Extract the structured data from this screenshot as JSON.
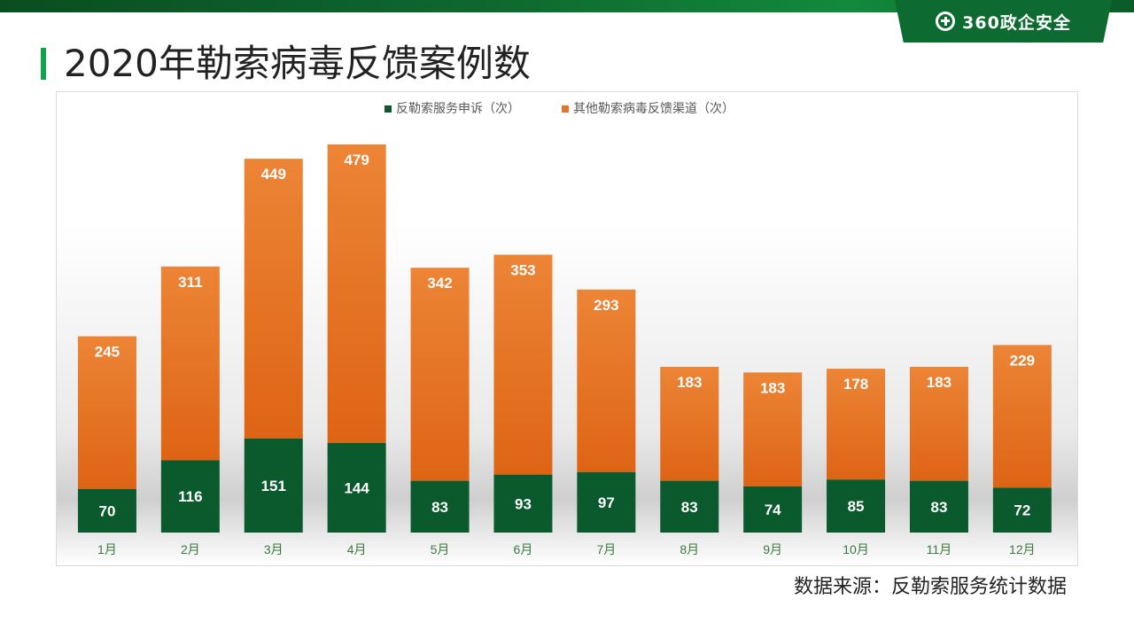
{
  "brand": {
    "logo_text": "360政企安全"
  },
  "page": {
    "title": "2020年勒索病毒反馈案例数"
  },
  "footer": {
    "source": "数据来源：反勒索服务统计数据"
  },
  "colors": {
    "complaints": "#0b5a2e",
    "other": "#e8732a",
    "brand_green": "#0d6b31",
    "accent": "#11a34a"
  },
  "chart_data": {
    "type": "bar",
    "stacked": true,
    "title": "",
    "xlabel": "",
    "ylabel": "",
    "ylim": [
      0,
      650
    ],
    "grid": false,
    "legend_position": "top-center",
    "categories": [
      "1月",
      "2月",
      "3月",
      "4月",
      "5月",
      "6月",
      "7月",
      "8月",
      "9月",
      "10月",
      "11月",
      "12月"
    ],
    "series": [
      {
        "name": "反勒索服务申诉（次）",
        "values": [
          70,
          116,
          151,
          144,
          83,
          93,
          97,
          83,
          74,
          85,
          83,
          72
        ]
      },
      {
        "name": "其他勒索病毒反馈渠道（次）",
        "values": [
          245,
          311,
          449,
          479,
          342,
          353,
          293,
          183,
          183,
          178,
          183,
          229
        ]
      }
    ]
  }
}
